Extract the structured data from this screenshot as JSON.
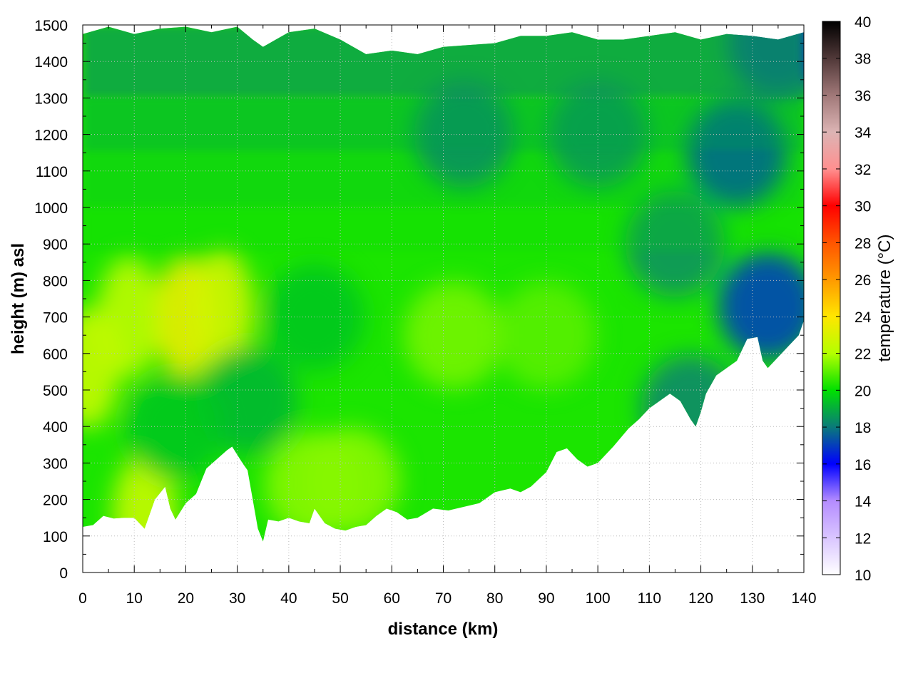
{
  "chart_data": {
    "type": "heatmap",
    "title": "",
    "xlabel": "distance (km)",
    "ylabel": "height (m) asl",
    "xlim": [
      0,
      140
    ],
    "ylim": [
      0,
      1500
    ],
    "x_ticks": [
      0,
      10,
      20,
      30,
      40,
      50,
      60,
      70,
      80,
      90,
      100,
      110,
      120,
      130,
      140
    ],
    "y_ticks": [
      0,
      100,
      200,
      300,
      400,
      500,
      600,
      700,
      800,
      900,
      1000,
      1100,
      1200,
      1300,
      1400,
      1500
    ],
    "grid": true,
    "colorbar": {
      "label": "temperature (°C)",
      "range": [
        10,
        40
      ],
      "ticks": [
        10,
        12,
        14,
        16,
        18,
        20,
        22,
        24,
        26,
        28,
        30,
        32,
        34,
        36,
        38,
        40
      ],
      "colormap": [
        {
          "value": 10,
          "color": "#ffffff"
        },
        {
          "value": 14,
          "color": "#b48cff"
        },
        {
          "value": 16,
          "color": "#0000ff"
        },
        {
          "value": 18,
          "color": "#0a7a7a"
        },
        {
          "value": 20,
          "color": "#00e000"
        },
        {
          "value": 22,
          "color": "#b4ff00"
        },
        {
          "value": 24,
          "color": "#ffe600"
        },
        {
          "value": 26,
          "color": "#ff9900"
        },
        {
          "value": 28,
          "color": "#ff5500"
        },
        {
          "value": 30,
          "color": "#ff0000"
        },
        {
          "value": 32,
          "color": "#ff9090"
        },
        {
          "value": 34,
          "color": "#dcb4b4"
        },
        {
          "value": 36,
          "color": "#a07878"
        },
        {
          "value": 38,
          "color": "#503838"
        },
        {
          "value": 40,
          "color": "#000000"
        }
      ]
    },
    "terrain_profile": {
      "distance_km": [
        0,
        2,
        4,
        6,
        8,
        10,
        12,
        14,
        16,
        17,
        18,
        20,
        22,
        24,
        26,
        28,
        29,
        31,
        32,
        34,
        35,
        36,
        38,
        40,
        42,
        44,
        45,
        47,
        49,
        51,
        53,
        55,
        57,
        59,
        61,
        63,
        65,
        68,
        71,
        74,
        77,
        80,
        83,
        85,
        87,
        90,
        92,
        94,
        96,
        98,
        100,
        103,
        106,
        108,
        110,
        112,
        114,
        116,
        118,
        119,
        120,
        121,
        123,
        125,
        127,
        129,
        131,
        132,
        133,
        135,
        137,
        139,
        140
      ],
      "ground_height_m": [
        125,
        130,
        155,
        148,
        150,
        150,
        120,
        200,
        235,
        175,
        145,
        190,
        215,
        285,
        310,
        335,
        345,
        300,
        280,
        120,
        85,
        145,
        140,
        150,
        140,
        135,
        175,
        135,
        120,
        115,
        125,
        130,
        155,
        175,
        165,
        145,
        150,
        175,
        170,
        180,
        190,
        220,
        230,
        220,
        235,
        275,
        330,
        340,
        310,
        290,
        300,
        345,
        395,
        420,
        450,
        470,
        490,
        470,
        420,
        400,
        440,
        490,
        540,
        560,
        580,
        640,
        645,
        580,
        560,
        590,
        620,
        650,
        690
      ]
    },
    "data_top_profile": {
      "distance_km": [
        0,
        5,
        10,
        15,
        20,
        25,
        30,
        33,
        35,
        40,
        45,
        50,
        55,
        60,
        65,
        70,
        75,
        80,
        85,
        90,
        95,
        100,
        105,
        110,
        115,
        120,
        125,
        130,
        135,
        140
      ],
      "top_height_m": [
        1475,
        1495,
        1475,
        1490,
        1495,
        1480,
        1495,
        1460,
        1440,
        1480,
        1490,
        1460,
        1420,
        1430,
        1420,
        1440,
        1445,
        1450,
        1470,
        1470,
        1480,
        1460,
        1460,
        1470,
        1480,
        1460,
        1475,
        1470,
        1460,
        1480
      ]
    },
    "temperature_features": [
      {
        "distance_km": 20,
        "height_m": 700,
        "temperature_c": 23.5
      },
      {
        "distance_km": 27,
        "height_m": 720,
        "temperature_c": 22.8
      },
      {
        "distance_km": 9,
        "height_m": 700,
        "temperature_c": 22.3
      },
      {
        "distance_km": 1,
        "height_m": 560,
        "temperature_c": 22.5
      },
      {
        "distance_km": 12,
        "height_m": 160,
        "temperature_c": 22.5
      },
      {
        "distance_km": 45,
        "height_m": 240,
        "temperature_c": 21.5
      },
      {
        "distance_km": 52,
        "height_m": 250,
        "temperature_c": 21.5
      },
      {
        "distance_km": 72,
        "height_m": 650,
        "temperature_c": 21.3
      },
      {
        "distance_km": 90,
        "height_m": 650,
        "temperature_c": 21
      },
      {
        "distance_km": 45,
        "height_m": 700,
        "temperature_c": 19.5
      },
      {
        "distance_km": 32,
        "height_m": 470,
        "temperature_c": 19.2
      },
      {
        "distance_km": 18,
        "height_m": 400,
        "temperature_c": 19.5
      },
      {
        "distance_km": 74,
        "height_m": 1200,
        "temperature_c": 18
      },
      {
        "distance_km": 100,
        "height_m": 1200,
        "temperature_c": 18.3
      },
      {
        "distance_km": 127,
        "height_m": 1150,
        "temperature_c": 17
      },
      {
        "distance_km": 133,
        "height_m": 730,
        "temperature_c": 17.1
      },
      {
        "distance_km": 118,
        "height_m": 450,
        "temperature_c": 18.3
      },
      {
        "distance_km": 115,
        "height_m": 900,
        "temperature_c": 18.5
      },
      {
        "distance_km": 135,
        "height_m": 1450,
        "temperature_c": 16.7
      }
    ]
  }
}
